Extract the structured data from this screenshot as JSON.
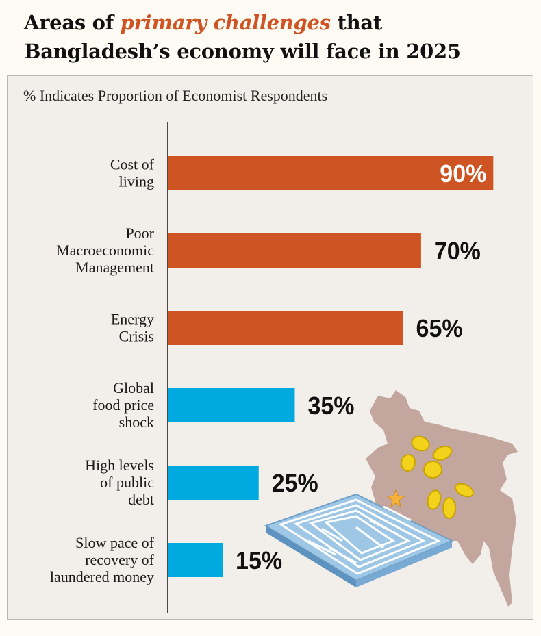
{
  "title": {
    "part1": "Areas of ",
    "highlight": "primary challenges",
    "part2": " that",
    "line2": "Bangladesh’s economy will face in 2025"
  },
  "chart_data": {
    "type": "bar",
    "orientation": "horizontal",
    "title": "Areas of primary challenges that Bangladesh’s economy will face in 2025",
    "subtitle": "% Indicates Proportion of Economist Respondents",
    "unit": "%",
    "xlim": [
      0,
      100
    ],
    "categories": [
      [
        "Cost of",
        "living"
      ],
      [
        "Poor",
        "Macroeconomic",
        "Management"
      ],
      [
        "Energy",
        "Crisis"
      ],
      [
        "Global",
        "food price",
        "shock"
      ],
      [
        "High levels",
        "of public",
        "debt"
      ],
      [
        "Slow pace of",
        "recovery of",
        "laundered money"
      ]
    ],
    "values": [
      90,
      70,
      65,
      35,
      25,
      15
    ],
    "value_labels": [
      "90%",
      "70%",
      "65%",
      "35%",
      "25%",
      "15%"
    ],
    "colors": [
      "#cf5424",
      "#cf5424",
      "#cf5424",
      "#00a9e0",
      "#00a9e0",
      "#00a9e0"
    ],
    "label_inside_color": "#ffffff",
    "label_outside_color": "#111111"
  },
  "decor": {
    "map_color": "#c3a79f",
    "coin_color": "#f3d21c",
    "maze_color": "#9ec7e6",
    "star_color": "#f6b13a"
  }
}
